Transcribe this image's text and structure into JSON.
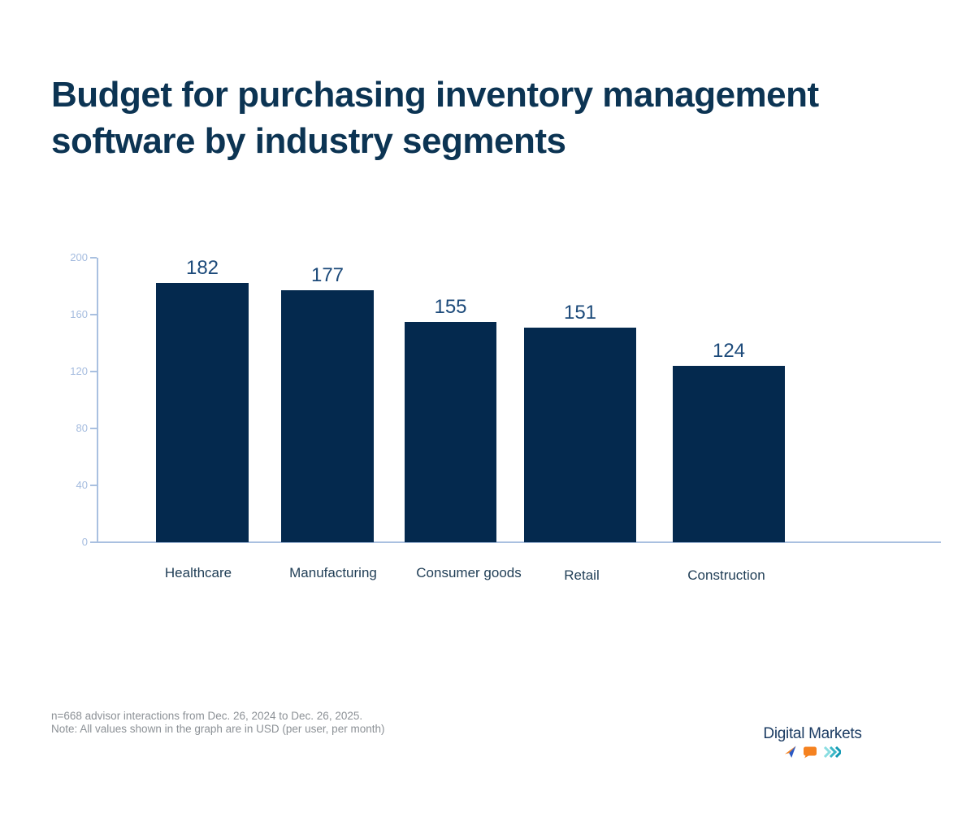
{
  "page_title": "Budget for purchasing inventory management software by industry segments",
  "chart_data": {
    "type": "bar",
    "title": "Budget for purchasing inventory management software by industry segments",
    "categories": [
      "Healthcare",
      "Manufacturing",
      "Consumer goods",
      "Retail",
      "Construction"
    ],
    "values": [
      182,
      177,
      155,
      151,
      124
    ],
    "xlabel": "",
    "ylabel": "",
    "ylim": [
      0,
      200
    ],
    "yticks": [
      0,
      40,
      80,
      120,
      160,
      200
    ],
    "grid": false,
    "legend": "none",
    "value_labels_shown": true,
    "colors": {
      "bar": "#04294e",
      "axis": "#a9c0e0",
      "tick_label": "#a5bcdf",
      "value_label": "#1c4a7a",
      "category_label": "#1f3d55",
      "title": "#0c3453"
    }
  },
  "footer": {
    "line1": "n=668 advisor interactions from Dec. 26, 2024 to Dec. 26, 2025.",
    "line2": "Note: All values shown in the graph are in USD (per user, per month)"
  },
  "logo": {
    "text": "Digital Markets",
    "icons": [
      "send-icon",
      "chat-bubble-icon",
      "fast-forward-icon"
    ],
    "icon_colors": {
      "send_orange": "#f58220",
      "send_blue": "#2b59c3",
      "bubble": "#f58220",
      "chevron_light": "#8adde1",
      "chevron_mid": "#3bb7c6",
      "chevron_dark": "#149ab4"
    }
  }
}
